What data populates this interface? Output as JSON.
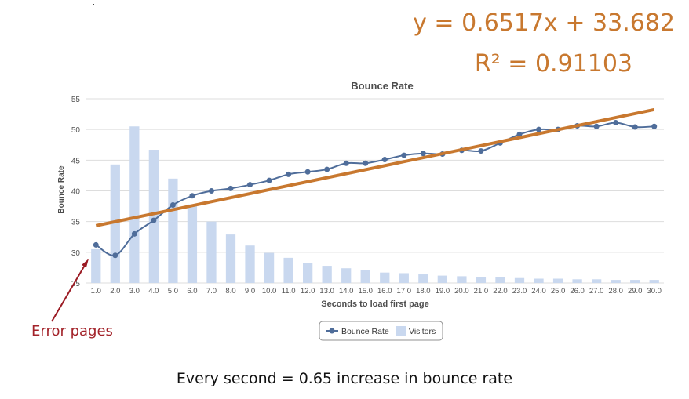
{
  "annotations": {
    "equation": "y = 0.6517x + 33.682",
    "r_squared": "R² = 0.91103",
    "error_label": "Error pages",
    "caption": "Every second = 0.65 increase in bounce rate"
  },
  "colors": {
    "line": "#4f6d9a",
    "bar": "#c9d8ef",
    "trend": "#c8782f",
    "grid": "#dddddd",
    "arrow": "#9b1b24"
  },
  "chart_data": {
    "type": "bar",
    "title": "Bounce Rate",
    "xlabel": "Seconds to load first page",
    "ylabel": "Bounce Rate",
    "ylim": [
      25,
      55
    ],
    "yticks": [
      25,
      30,
      35,
      40,
      45,
      50,
      55
    ],
    "categories": [
      "1.0",
      "2.0",
      "3.0",
      "4.0",
      "5.0",
      "6.0",
      "7.0",
      "8.0",
      "9.0",
      "10.0",
      "11.0",
      "12.0",
      "13.0",
      "14.0",
      "15.0",
      "16.0",
      "17.0",
      "18.0",
      "19.0",
      "20.0",
      "21.0",
      "22.0",
      "23.0",
      "24.0",
      "25.0",
      "26.0",
      "27.0",
      "28.0",
      "29.0",
      "30.0"
    ],
    "series": [
      {
        "name": "Visitors",
        "type": "bar",
        "values": [
          30.5,
          44.3,
          50.5,
          46.7,
          42,
          37.8,
          35,
          32.9,
          31.1,
          29.9,
          29.1,
          28.3,
          27.8,
          27.4,
          27.1,
          26.7,
          26.6,
          26.4,
          26.2,
          26.1,
          26,
          25.9,
          25.8,
          25.7,
          25.7,
          25.6,
          25.6,
          25.5,
          25.5,
          25.5
        ]
      },
      {
        "name": "Bounce Rate",
        "type": "line",
        "values": [
          31.2,
          29.5,
          33,
          35.2,
          37.7,
          39.2,
          40,
          40.4,
          41,
          41.7,
          42.7,
          43.1,
          43.5,
          44.5,
          44.5,
          45.1,
          45.8,
          46.1,
          46,
          46.6,
          46.5,
          47.8,
          49.2,
          50,
          50,
          50.6,
          50.5,
          51.1,
          50.4,
          50.5
        ]
      }
    ],
    "trendline": {
      "slope": 0.6517,
      "intercept": 33.682,
      "x_start": 1,
      "x_end": 30
    },
    "legend": [
      "Bounce Rate",
      "Visitors"
    ],
    "legend_position": "bottom"
  }
}
